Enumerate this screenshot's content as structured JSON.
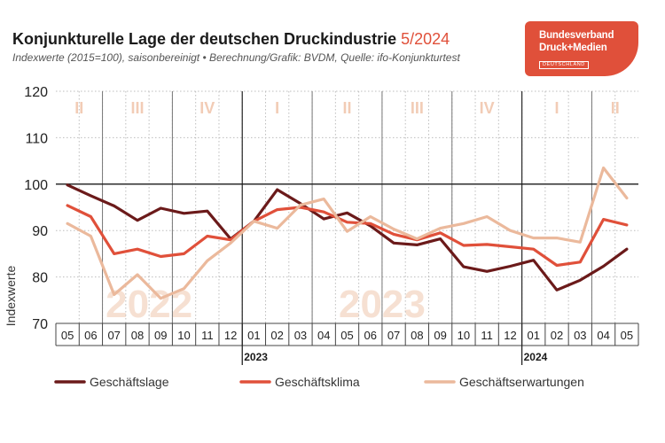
{
  "header": {
    "title": "Konjunkturelle Lage der deutschen Druckindustrie",
    "title_highlight": "5/2024",
    "subtitle": "Indexwerte (2015=100), saisonbereinigt • Berechnung/Grafik: BVDM, Quelle: ifo-Konjunkturtest"
  },
  "logo": {
    "line1": "Bundesverband",
    "line2": "Druck+Medien",
    "line3": "DEUTSCHLAND",
    "color": "#e0503a"
  },
  "chart_data": {
    "type": "line",
    "ylabel": "Indexwerte",
    "ylim": [
      70,
      120
    ],
    "yticks": [
      70,
      80,
      90,
      100,
      110,
      120
    ],
    "reference_line": 100,
    "grid": true,
    "legend_position": "bottom",
    "months": [
      "05",
      "06",
      "07",
      "08",
      "09",
      "10",
      "11",
      "12",
      "01",
      "02",
      "03",
      "04",
      "05",
      "06",
      "07",
      "08",
      "09",
      "10",
      "11",
      "12",
      "01",
      "02",
      "03",
      "04",
      "05"
    ],
    "years": [
      {
        "label": "2023",
        "month_index": 8
      },
      {
        "label": "2024",
        "month_index": 20
      }
    ],
    "quarters": [
      {
        "label": "II",
        "from": 0,
        "to": 1
      },
      {
        "label": "III",
        "from": 2,
        "to": 4
      },
      {
        "label": "IV",
        "from": 5,
        "to": 7
      },
      {
        "label": "I",
        "from": 8,
        "to": 10
      },
      {
        "label": "II",
        "from": 11,
        "to": 13
      },
      {
        "label": "III",
        "from": 14,
        "to": 16
      },
      {
        "label": "IV",
        "from": 17,
        "to": 19
      },
      {
        "label": "I",
        "from": 20,
        "to": 22
      },
      {
        "label": "II",
        "from": 23,
        "to": 24
      }
    ],
    "watermarks": [
      {
        "label": "2022",
        "from": 0,
        "to": 7
      },
      {
        "label": "2023",
        "from": 8,
        "to": 19
      }
    ],
    "series": [
      {
        "name": "Geschäftslage",
        "color": "#6b1a1a",
        "values": [
          99.8,
          97.5,
          95.3,
          92.2,
          94.8,
          93.7,
          94.2,
          88.2,
          92.0,
          98.8,
          95.8,
          92.5,
          93.8,
          91.0,
          87.3,
          86.9,
          88.2,
          82.2,
          81.2,
          82.3,
          83.6,
          77.2,
          79.3,
          82.3,
          86.0
        ]
      },
      {
        "name": "Geschäftsklima",
        "color": "#e0503a",
        "values": [
          95.4,
          93.0,
          85.0,
          86.0,
          84.4,
          85.0,
          88.8,
          88.0,
          92.0,
          94.5,
          95.0,
          94.0,
          91.8,
          91.5,
          89.2,
          88.0,
          89.5,
          86.8,
          87.0,
          86.5,
          86.0,
          82.5,
          83.2,
          92.4,
          91.2
        ]
      },
      {
        "name": "Geschäftserwartungen",
        "color": "#ebb99c",
        "values": [
          91.5,
          88.8,
          76.2,
          80.5,
          75.4,
          77.5,
          83.5,
          87.3,
          92.0,
          90.5,
          95.5,
          96.8,
          89.8,
          93.0,
          90.3,
          88.2,
          90.5,
          91.5,
          93.0,
          90.0,
          88.4,
          88.4,
          87.5,
          103.5,
          97.0
        ]
      }
    ]
  }
}
